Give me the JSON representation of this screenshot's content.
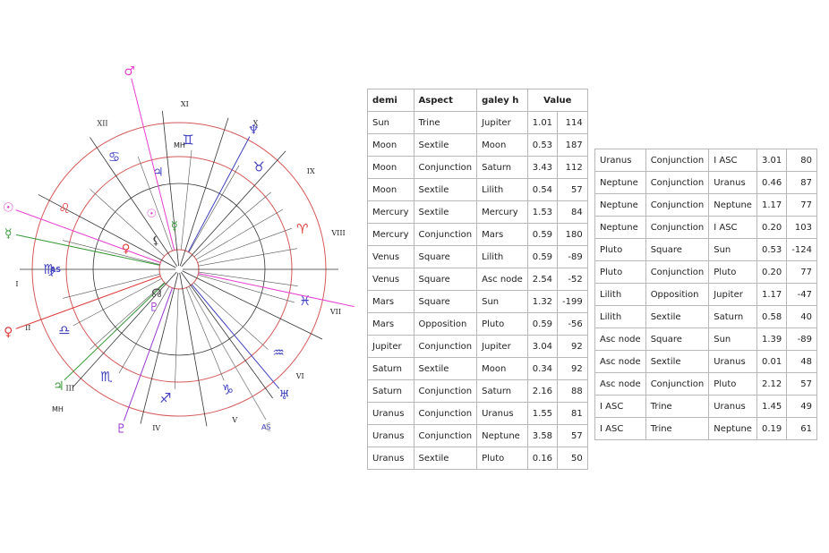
{
  "colors": {
    "outer_ring": "#d65a5a",
    "inner_lines": "#333333",
    "mars": "#e83fd0",
    "sun": "#e83fd0",
    "venus": "#e03a3a",
    "moon": "#9a9a9a",
    "mercury": "#3a9a3a",
    "jupiter": "#3a9a3a",
    "pluto": "#9a3ad0",
    "blue_sign": "#4040c0"
  },
  "chart": {
    "house_numerals": [
      "I",
      "II",
      "III",
      "IV",
      "V",
      "VI",
      "VII",
      "VIII",
      "IX",
      "X",
      "XI",
      "XII"
    ],
    "labels": {
      "as": "AS",
      "mh": "MH"
    },
    "planet_glyphs": {
      "mars": "♂",
      "sun": "☉",
      "venus": "♀",
      "moon": "☾",
      "mercury": "☿",
      "jupiter": "♃",
      "saturn": "♄",
      "pluto": "♇",
      "uranus": "♅",
      "neptune": "♆",
      "lilith": "⚸",
      "node": "☊"
    },
    "sign_glyphs": [
      "♈",
      "♉",
      "♊",
      "♋",
      "♌",
      "♍",
      "♎",
      "♏",
      "♐",
      "♑",
      "♒",
      "♓"
    ]
  },
  "table_left": {
    "headers": [
      "demi",
      "Aspect",
      "galey h",
      "Value"
    ],
    "rows": [
      [
        "Sun",
        "Trine",
        "Jupiter",
        "1.01",
        "114"
      ],
      [
        "Moon",
        "Sextile",
        "Moon",
        "0.53",
        "187"
      ],
      [
        "Moon",
        "Conjunction",
        "Saturn",
        "3.43",
        "112"
      ],
      [
        "Moon",
        "Sextile",
        "Lilith",
        "0.54",
        "57"
      ],
      [
        "Mercury",
        "Sextile",
        "Mercury",
        "1.53",
        "84"
      ],
      [
        "Mercury",
        "Conjunction",
        "Mars",
        "0.59",
        "180"
      ],
      [
        "Venus",
        "Square",
        "Lilith",
        "0.59",
        "-89"
      ],
      [
        "Venus",
        "Square",
        "Asc node",
        "2.54",
        "-52"
      ],
      [
        "Mars",
        "Square",
        "Sun",
        "1.32",
        "-199"
      ],
      [
        "Mars",
        "Opposition",
        "Pluto",
        "0.59",
        "-56"
      ],
      [
        "Jupiter",
        "Conjunction",
        "Jupiter",
        "3.04",
        "92"
      ],
      [
        "Saturn",
        "Sextile",
        "Moon",
        "0.34",
        "92"
      ],
      [
        "Saturn",
        "Conjunction",
        "Saturn",
        "2.16",
        "88"
      ],
      [
        "Uranus",
        "Conjunction",
        "Uranus",
        "1.55",
        "81"
      ],
      [
        "Uranus",
        "Conjunction",
        "Neptune",
        "3.58",
        "57"
      ],
      [
        "Uranus",
        "Sextile",
        "Pluto",
        "0.16",
        "50"
      ]
    ]
  },
  "table_right": {
    "rows": [
      [
        "Uranus",
        "Conjunction",
        "I ASC",
        "3.01",
        "80"
      ],
      [
        "Neptune",
        "Conjunction",
        "Uranus",
        "0.46",
        "87"
      ],
      [
        "Neptune",
        "Conjunction",
        "Neptune",
        "1.17",
        "77"
      ],
      [
        "Neptune",
        "Conjunction",
        "I ASC",
        "0.20",
        "103"
      ],
      [
        "Pluto",
        "Square",
        "Sun",
        "0.53",
        "-124"
      ],
      [
        "Pluto",
        "Conjunction",
        "Pluto",
        "0.20",
        "77"
      ],
      [
        "Lilith",
        "Opposition",
        "Jupiter",
        "1.17",
        "-47"
      ],
      [
        "Lilith",
        "Sextile",
        "Saturn",
        "0.58",
        "40"
      ],
      [
        "Asc node",
        "Square",
        "Sun",
        "1.39",
        "-89"
      ],
      [
        "Asc node",
        "Sextile",
        "Uranus",
        "0.01",
        "48"
      ],
      [
        "Asc node",
        "Conjunction",
        "Pluto",
        "2.12",
        "57"
      ],
      [
        "I ASC",
        "Trine",
        "Uranus",
        "1.45",
        "49"
      ],
      [
        "I ASC",
        "Trine",
        "Neptune",
        "0.19",
        "61"
      ]
    ]
  }
}
